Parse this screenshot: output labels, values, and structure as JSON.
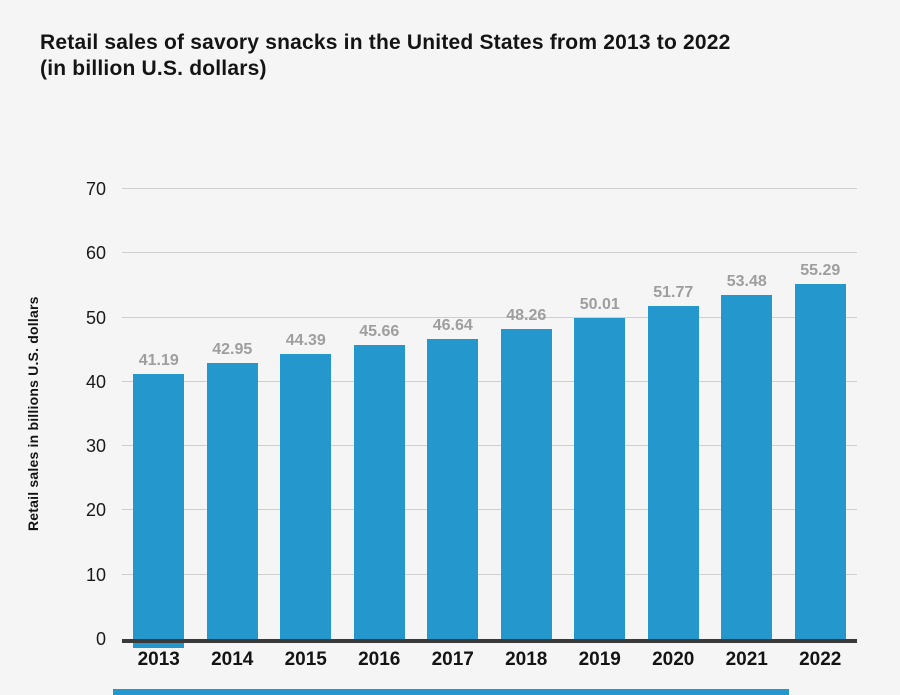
{
  "colors": {
    "bar": "#2498CC",
    "background": "#F5F5F6",
    "axis_line": "#3A3A3A",
    "gridline": "#CFCFCF",
    "value_label": "#9E9E9E",
    "text": "#141414",
    "bottom_strip": "#2498CC"
  },
  "chart_data": {
    "type": "bar",
    "title": "Retail sales of savory snacks in the United States from 2013 to 2022",
    "subtitle": "(in billion U.S. dollars)",
    "xlabel": "",
    "ylabel": "Retail sales in billions U.S. dollars",
    "categories": [
      "2013",
      "2014",
      "2015",
      "2016",
      "2017",
      "2018",
      "2019",
      "2020",
      "2021",
      "2022"
    ],
    "values": [
      41.19,
      42.95,
      44.39,
      45.66,
      46.64,
      48.26,
      50.01,
      51.77,
      53.48,
      55.29
    ],
    "value_labels": [
      "41.19",
      "42.95",
      "44.39",
      "45.66",
      "46.64",
      "48.26",
      "50.01",
      "51.77",
      "53.48",
      "55.29"
    ],
    "ylim": [
      0,
      70
    ],
    "yticks": [
      0,
      10,
      20,
      30,
      40,
      50,
      60,
      70
    ],
    "grid": "horizontal",
    "legend": "none",
    "bar_color": "#2498CC"
  }
}
